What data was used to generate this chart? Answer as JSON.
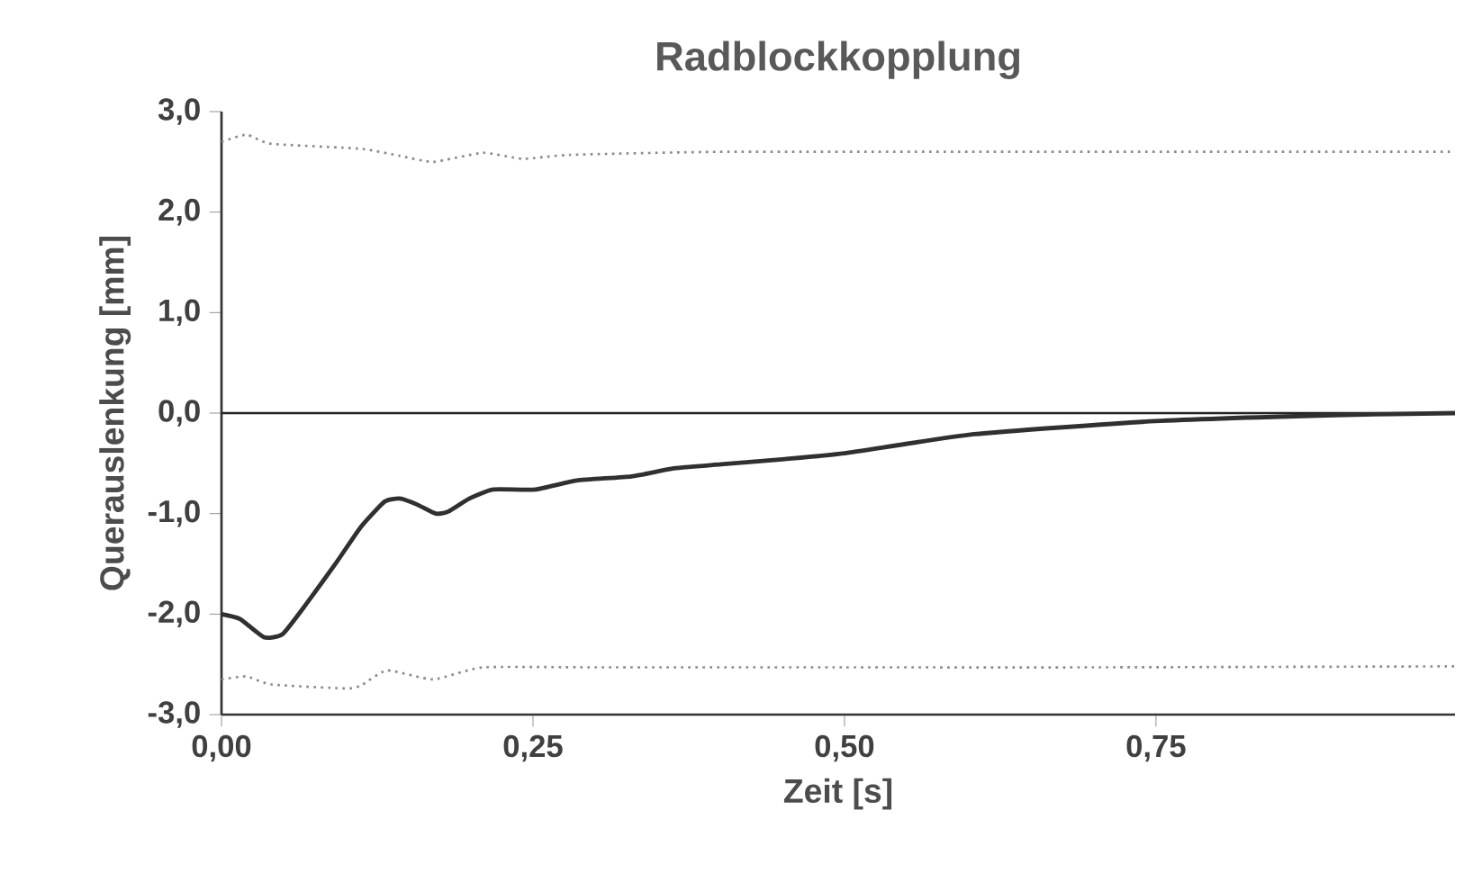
{
  "chart_data": {
    "type": "line",
    "title": "Radblockkopplung",
    "xlabel": "Zeit [s]",
    "ylabel": "Querauslenkung [mm]",
    "xlim": [
      0,
      0.99
    ],
    "ylim": [
      -3,
      3
    ],
    "xticks": [
      {
        "value": 0,
        "label": "0,00"
      },
      {
        "value": 0.25,
        "label": "0,25"
      },
      {
        "value": 0.5,
        "label": "0,50"
      },
      {
        "value": 0.75,
        "label": "0,75"
      }
    ],
    "yticks": [
      {
        "value": -3,
        "label": "-3,0"
      },
      {
        "value": -2,
        "label": "-2,0"
      },
      {
        "value": -1,
        "label": "-1,0"
      },
      {
        "value": 0,
        "label": "0,0"
      },
      {
        "value": 1,
        "label": "1,0"
      },
      {
        "value": 2,
        "label": "2,0"
      },
      {
        "value": 3,
        "label": "3,0"
      }
    ],
    "grid": false,
    "line_style": "solid",
    "ref_lines": [
      {
        "axis": "y",
        "value": 0,
        "color": "#222222"
      }
    ],
    "series": [
      {
        "color": "#303030",
        "x": [
          0,
          0.015,
          0.034,
          0.049,
          0.068,
          0.092,
          0.112,
          0.131,
          0.143,
          0.157,
          0.172,
          0.182,
          0.199,
          0.218,
          0.252,
          0.285,
          0.329,
          0.363,
          0.401,
          0.45,
          0.5,
          0.604,
          0.749,
          0.894,
          0.99
        ],
        "values": [
          -2.0,
          -2.05,
          -2.23,
          -2.2,
          -1.9,
          -1.49,
          -1.13,
          -0.88,
          -0.85,
          -0.91,
          -1.0,
          -0.98,
          -0.85,
          -0.76,
          -0.76,
          -0.67,
          -0.63,
          -0.55,
          -0.51,
          -0.46,
          -0.4,
          -0.21,
          -0.08,
          -0.02,
          0.0
        ]
      },
      {
        "color": "#8a8a8a",
        "line_style": "dotted",
        "x": [
          0,
          0.02,
          0.04,
          0.112,
          0.143,
          0.17,
          0.21,
          0.242,
          0.28,
          0.4,
          0.6,
          0.8,
          0.99
        ],
        "values": [
          2.7,
          2.77,
          2.68,
          2.63,
          2.56,
          2.5,
          2.59,
          2.53,
          2.57,
          2.6,
          2.6,
          2.6,
          2.6
        ]
      },
      {
        "color": "#8a8a8a",
        "line_style": "dotted",
        "x": [
          0,
          0.02,
          0.04,
          0.1,
          0.112,
          0.133,
          0.17,
          0.21,
          0.3,
          0.5,
          0.7,
          0.99
        ],
        "values": [
          -2.65,
          -2.62,
          -2.7,
          -2.74,
          -2.71,
          -2.56,
          -2.65,
          -2.53,
          -2.53,
          -2.53,
          -2.53,
          -2.52
        ]
      }
    ]
  }
}
